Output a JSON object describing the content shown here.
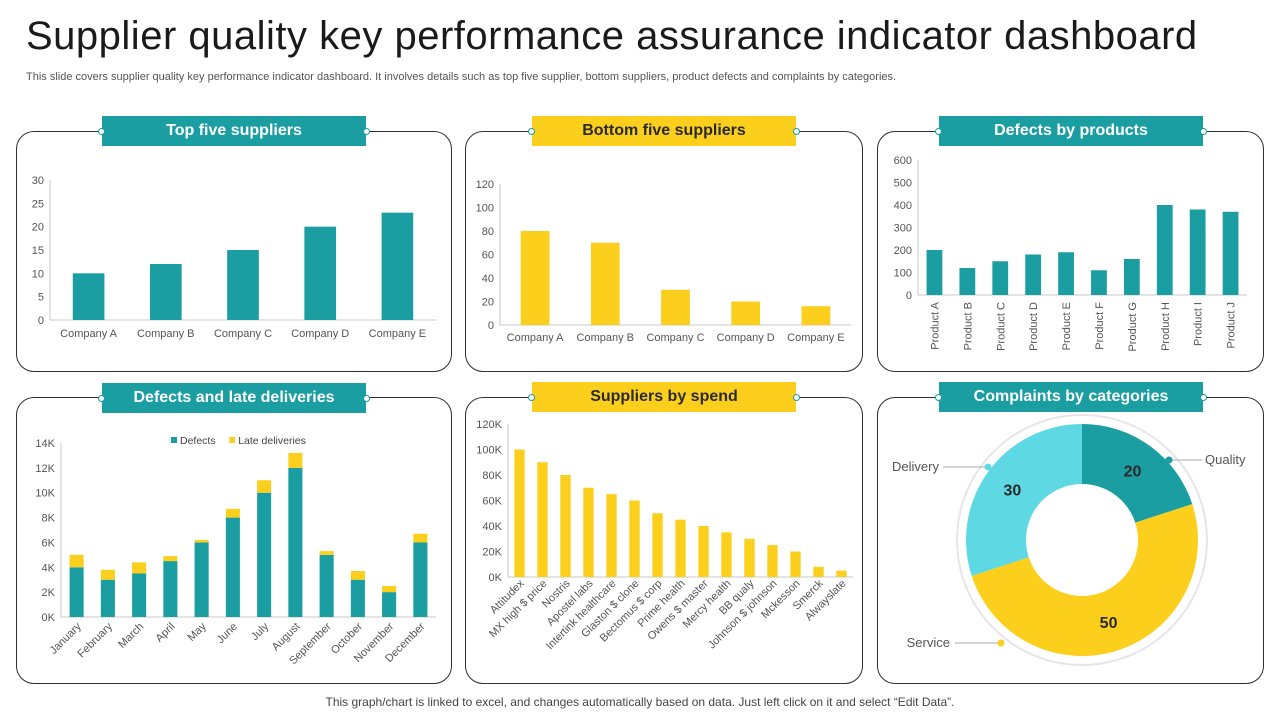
{
  "page": {
    "title": "Supplier quality key performance assurance indicator dashboard",
    "subtitle": "This slide covers supplier quality key performance indicator dashboard. It involves details such as top five supplier, bottom suppliers, product defects and complaints by categories.",
    "footer": "This graph/chart is linked to excel, and changes automatically based on data. Just left click on it and select “Edit Data”."
  },
  "colors": {
    "teal": "#1a9ea2",
    "yellow": "#fbcf1c",
    "light_cyan": "#5ed9e3",
    "axis": "#c8c8c8",
    "label": "#555555"
  },
  "panels": {
    "top_five": "Top five suppliers",
    "bottom_five": "Bottom five suppliers",
    "defects_products": "Defects by products",
    "defects_late": "Defects and late deliveries",
    "spend": "Suppliers by spend",
    "complaints": "Complaints by categories"
  },
  "chart_data": [
    {
      "id": "top_five",
      "type": "bar",
      "title": "Top five suppliers",
      "categories": [
        "Company A",
        "Company B",
        "Company C",
        "Company D",
        "Company E"
      ],
      "values": [
        10,
        12,
        15,
        20,
        23
      ],
      "ylim": [
        0,
        30
      ],
      "yticks": [
        0,
        5,
        10,
        15,
        20,
        25,
        30
      ],
      "ytick_labels": [
        "0",
        "5",
        "10",
        "15",
        "20",
        "25",
        "30"
      ],
      "color": "#1a9ea2"
    },
    {
      "id": "bottom_five",
      "type": "bar",
      "title": "Bottom five suppliers",
      "categories": [
        "Company A",
        "Company B",
        "Company C",
        "Company D",
        "Company E"
      ],
      "values": [
        80,
        70,
        30,
        20,
        16
      ],
      "ylim": [
        0,
        120
      ],
      "yticks": [
        0,
        20,
        40,
        60,
        80,
        100,
        120
      ],
      "ytick_labels": [
        "0",
        "20",
        "40",
        "60",
        "80",
        "100",
        "120"
      ],
      "color": "#fbcf1c"
    },
    {
      "id": "defects_products",
      "type": "bar",
      "title": "Defects by products",
      "categories": [
        "Product A",
        "Product B",
        "Product C",
        "Product D",
        "Product E",
        "Product F",
        "Product G",
        "Product H",
        "Product I",
        "Product J"
      ],
      "values": [
        200,
        120,
        150,
        180,
        190,
        110,
        160,
        400,
        380,
        370
      ],
      "ylim": [
        0,
        600
      ],
      "yticks": [
        0,
        100,
        200,
        300,
        400,
        500,
        600
      ],
      "ytick_labels": [
        "0",
        "100",
        "200",
        "300",
        "400",
        "500",
        "600"
      ],
      "color": "#1a9ea2",
      "rotate_labels": -90
    },
    {
      "id": "defects_late",
      "type": "bar",
      "stacked": true,
      "title": "Defects and late deliveries",
      "categories": [
        "January",
        "February",
        "March",
        "April",
        "May",
        "June",
        "July",
        "August",
        "September",
        "October",
        "November",
        "December"
      ],
      "series": [
        {
          "name": "Defects",
          "color": "#1a9ea2",
          "values": [
            4000,
            3000,
            3500,
            4500,
            6000,
            8000,
            10000,
            12000,
            5000,
            3000,
            2000,
            6000
          ]
        },
        {
          "name": "Late deliveries",
          "color": "#fbcf1c",
          "values": [
            1000,
            800,
            900,
            400,
            200,
            700,
            1000,
            1200,
            300,
            700,
            500,
            700
          ]
        }
      ],
      "ylim": [
        0,
        14000
      ],
      "yticks": [
        0,
        2000,
        4000,
        6000,
        8000,
        10000,
        12000,
        14000
      ],
      "ytick_labels": [
        "0K",
        "2K",
        "4K",
        "6K",
        "8K",
        "10K",
        "12K",
        "14K"
      ],
      "legend": "top-center",
      "rotate_labels": -45
    },
    {
      "id": "spend",
      "type": "bar",
      "title": "Suppliers by spend",
      "categories": [
        "Attitudex",
        "MX high $ price",
        "Nostris",
        "Apostel labs",
        "Intertink healthcare",
        "Glaston $ clone",
        "Bectomus $ corp",
        "Prime health",
        "Owens $ master",
        "Mercy health",
        "BB qualy",
        "Johnson $ johnson",
        "Mckesson",
        "Smerck",
        "Alwayslate"
      ],
      "values": [
        100000,
        90000,
        80000,
        70000,
        65000,
        60000,
        50000,
        45000,
        40000,
        35000,
        30000,
        25000,
        20000,
        8000,
        5000
      ],
      "ylim": [
        0,
        120000
      ],
      "yticks": [
        0,
        20000,
        40000,
        60000,
        80000,
        100000,
        120000
      ],
      "ytick_labels": [
        "0K",
        "20K",
        "40K",
        "60K",
        "80K",
        "100K",
        "120K"
      ],
      "color": "#fbcf1c",
      "rotate_labels": -45
    },
    {
      "id": "complaints",
      "type": "pie",
      "donut": true,
      "title": "Complaints by categories",
      "slices": [
        {
          "label": "Quality",
          "value": 20,
          "color": "#1a9ea2"
        },
        {
          "label": "Service",
          "value": 50,
          "color": "#fbcf1c"
        },
        {
          "label": "Delivery",
          "value": 30,
          "color": "#5ed9e3"
        }
      ]
    }
  ]
}
